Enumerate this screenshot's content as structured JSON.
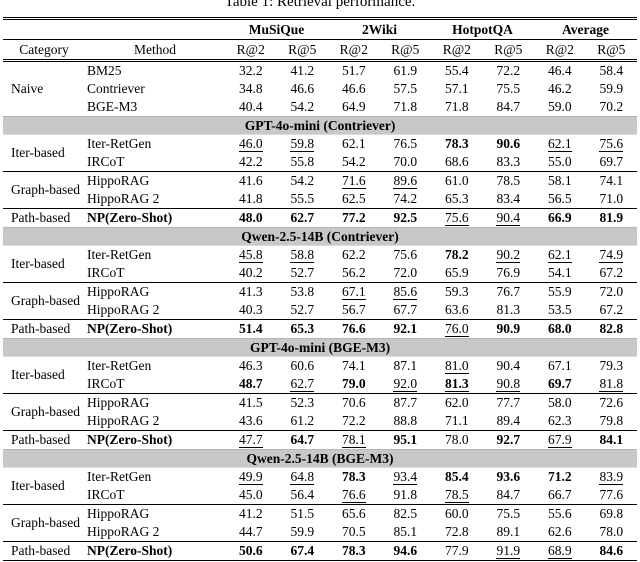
{
  "title": "Table 1: Retrieval performance.",
  "colors": {
    "band_bg": "#c8c8c8",
    "text": "#000000",
    "background": "#ffffff"
  },
  "table": {
    "group_headers": [
      "MuSiQue",
      "2Wiki",
      "HotpotQA",
      "Average"
    ],
    "col_headers": [
      "Category",
      "Method",
      "R@2",
      "R@5",
      "R@2",
      "R@5",
      "R@2",
      "R@5",
      "R@2",
      "R@5"
    ],
    "style_legend": {
      "b": "bold (best)",
      "u": "underlined (second best)",
      "": "plain"
    },
    "rows": [
      {
        "category": "Naive",
        "catspan": 3,
        "method": "BM25",
        "cells": [
          [
            "32.2",
            ""
          ],
          [
            "41.2",
            ""
          ],
          [
            "51.7",
            ""
          ],
          [
            "61.9",
            ""
          ],
          [
            "55.4",
            ""
          ],
          [
            "72.2",
            ""
          ],
          [
            "46.4",
            ""
          ],
          [
            "58.4",
            ""
          ]
        ]
      },
      {
        "method": "Contriever",
        "cells": [
          [
            "34.8",
            ""
          ],
          [
            "46.6",
            ""
          ],
          [
            "46.6",
            ""
          ],
          [
            "57.5",
            ""
          ],
          [
            "57.1",
            ""
          ],
          [
            "75.5",
            ""
          ],
          [
            "46.2",
            ""
          ],
          [
            "59.9",
            ""
          ]
        ]
      },
      {
        "method": "BGE-M3",
        "cells": [
          [
            "40.4",
            ""
          ],
          [
            "54.2",
            ""
          ],
          [
            "64.9",
            ""
          ],
          [
            "71.8",
            ""
          ],
          [
            "71.8",
            ""
          ],
          [
            "84.7",
            ""
          ],
          [
            "59.0",
            ""
          ],
          [
            "70.2",
            ""
          ]
        ]
      },
      {
        "band": "GPT-4o-mini (Contriever)"
      },
      {
        "category": "Iter-based",
        "catspan": 2,
        "method": "Iter-RetGen",
        "cells": [
          [
            "46.0",
            "u"
          ],
          [
            "59.8",
            "u"
          ],
          [
            "62.1",
            ""
          ],
          [
            "76.5",
            ""
          ],
          [
            "78.3",
            "b"
          ],
          [
            "90.6",
            "b"
          ],
          [
            "62.1",
            "u"
          ],
          [
            "75.6",
            "u"
          ]
        ]
      },
      {
        "method": "IRCoT",
        "cells": [
          [
            "42.2",
            ""
          ],
          [
            "55.8",
            ""
          ],
          [
            "54.2",
            ""
          ],
          [
            "70.0",
            ""
          ],
          [
            "68.6",
            ""
          ],
          [
            "83.3",
            ""
          ],
          [
            "55.0",
            ""
          ],
          [
            "69.7",
            ""
          ]
        ]
      },
      {
        "sep": true,
        "category": "Graph-based",
        "catspan": 2,
        "method": "HippoRAG",
        "cells": [
          [
            "41.6",
            ""
          ],
          [
            "54.2",
            ""
          ],
          [
            "71.6",
            "u"
          ],
          [
            "89.6",
            "u"
          ],
          [
            "61.0",
            ""
          ],
          [
            "78.5",
            ""
          ],
          [
            "58.1",
            ""
          ],
          [
            "74.1",
            ""
          ]
        ]
      },
      {
        "method": "HippoRAG 2",
        "cells": [
          [
            "41.8",
            ""
          ],
          [
            "55.5",
            ""
          ],
          [
            "62.5",
            ""
          ],
          [
            "74.2",
            ""
          ],
          [
            "65.3",
            ""
          ],
          [
            "83.4",
            ""
          ],
          [
            "56.5",
            ""
          ],
          [
            "71.0",
            ""
          ]
        ]
      },
      {
        "sep": true,
        "category": "Path-based",
        "catspan": 1,
        "method": "NP(Zero-Shot)",
        "method_bold": true,
        "cells": [
          [
            "48.0",
            "b"
          ],
          [
            "62.7",
            "b"
          ],
          [
            "77.2",
            "b"
          ],
          [
            "92.5",
            "b"
          ],
          [
            "75.6",
            "u"
          ],
          [
            "90.4",
            "u"
          ],
          [
            "66.9",
            "b"
          ],
          [
            "81.9",
            "b"
          ]
        ]
      },
      {
        "band": "Qwen-2.5-14B (Contriever)"
      },
      {
        "category": "Iter-based",
        "catspan": 2,
        "method": "Iter-RetGen",
        "cells": [
          [
            "45.8",
            "u"
          ],
          [
            "58.8",
            "u"
          ],
          [
            "62.2",
            ""
          ],
          [
            "75.6",
            ""
          ],
          [
            "78.2",
            "b"
          ],
          [
            "90.2",
            "u"
          ],
          [
            "62.1",
            "u"
          ],
          [
            "74.9",
            "u"
          ]
        ]
      },
      {
        "method": "IRCoT",
        "cells": [
          [
            "40.2",
            ""
          ],
          [
            "52.7",
            ""
          ],
          [
            "56.2",
            ""
          ],
          [
            "72.0",
            ""
          ],
          [
            "65.9",
            ""
          ],
          [
            "76.9",
            ""
          ],
          [
            "54.1",
            ""
          ],
          [
            "67.2",
            ""
          ]
        ]
      },
      {
        "sep": true,
        "category": "Graph-based",
        "catspan": 2,
        "method": "HippoRAG",
        "cells": [
          [
            "41.3",
            ""
          ],
          [
            "53.8",
            ""
          ],
          [
            "67.1",
            "u"
          ],
          [
            "85.6",
            "u"
          ],
          [
            "59.3",
            ""
          ],
          [
            "76.7",
            ""
          ],
          [
            "55.9",
            ""
          ],
          [
            "72.0",
            ""
          ]
        ]
      },
      {
        "method": "HippoRAG 2",
        "cells": [
          [
            "40.3",
            ""
          ],
          [
            "52.7",
            ""
          ],
          [
            "56.7",
            ""
          ],
          [
            "67.7",
            ""
          ],
          [
            "63.6",
            ""
          ],
          [
            "81.3",
            ""
          ],
          [
            "53.5",
            ""
          ],
          [
            "67.2",
            ""
          ]
        ]
      },
      {
        "sep": true,
        "category": "Path-based",
        "catspan": 1,
        "method": "NP(Zero-Shot)",
        "method_bold": true,
        "cells": [
          [
            "51.4",
            "b"
          ],
          [
            "65.3",
            "b"
          ],
          [
            "76.6",
            "b"
          ],
          [
            "92.1",
            "b"
          ],
          [
            "76.0",
            "u"
          ],
          [
            "90.9",
            "b"
          ],
          [
            "68.0",
            "b"
          ],
          [
            "82.8",
            "b"
          ]
        ]
      },
      {
        "band": "GPT-4o-mini (BGE-M3)"
      },
      {
        "category": "Iter-based",
        "catspan": 2,
        "method": "Iter-RetGen",
        "cells": [
          [
            "46.3",
            ""
          ],
          [
            "60.6",
            ""
          ],
          [
            "74.1",
            ""
          ],
          [
            "87.1",
            ""
          ],
          [
            "81.0",
            "u"
          ],
          [
            "90.4",
            ""
          ],
          [
            "67.1",
            ""
          ],
          [
            "79.3",
            ""
          ]
        ]
      },
      {
        "method": "IRCoT",
        "cells": [
          [
            "48.7",
            "b"
          ],
          [
            "62.7",
            "u"
          ],
          [
            "79.0",
            "b"
          ],
          [
            "92.0",
            "u"
          ],
          [
            "81.3",
            "bu"
          ],
          [
            "90.8",
            "u"
          ],
          [
            "69.7",
            "b"
          ],
          [
            "81.8",
            "u"
          ]
        ]
      },
      {
        "sep": true,
        "category": "Graph-based",
        "catspan": 2,
        "method": "HippoRAG",
        "cells": [
          [
            "41.5",
            ""
          ],
          [
            "52.3",
            ""
          ],
          [
            "70.6",
            ""
          ],
          [
            "87.7",
            ""
          ],
          [
            "62.0",
            ""
          ],
          [
            "77.7",
            ""
          ],
          [
            "58.0",
            ""
          ],
          [
            "72.6",
            ""
          ]
        ]
      },
      {
        "method": "HippoRAG 2",
        "cells": [
          [
            "43.6",
            ""
          ],
          [
            "61.2",
            ""
          ],
          [
            "72.2",
            ""
          ],
          [
            "88.8",
            ""
          ],
          [
            "71.1",
            ""
          ],
          [
            "89.4",
            ""
          ],
          [
            "62.3",
            ""
          ],
          [
            "79.8",
            ""
          ]
        ]
      },
      {
        "sep": true,
        "category": "Path-based",
        "catspan": 1,
        "method": "NP(Zero-Shot)",
        "method_bold": true,
        "cells": [
          [
            "47.7",
            "u"
          ],
          [
            "64.7",
            "b"
          ],
          [
            "78.1",
            "u"
          ],
          [
            "95.1",
            "b"
          ],
          [
            "78.0",
            ""
          ],
          [
            "92.7",
            "b"
          ],
          [
            "67.9",
            "u"
          ],
          [
            "84.1",
            "b"
          ]
        ]
      },
      {
        "band": "Qwen-2.5-14B (BGE-M3)"
      },
      {
        "category": "Iter-based",
        "catspan": 2,
        "method": "Iter-RetGen",
        "cells": [
          [
            "49.9",
            "u"
          ],
          [
            "64.8",
            "u"
          ],
          [
            "78.3",
            "b"
          ],
          [
            "93.4",
            "u"
          ],
          [
            "85.4",
            "b"
          ],
          [
            "93.6",
            "b"
          ],
          [
            "71.2",
            "b"
          ],
          [
            "83.9",
            "u"
          ]
        ]
      },
      {
        "method": "IRCoT",
        "cells": [
          [
            "45.0",
            ""
          ],
          [
            "56.4",
            ""
          ],
          [
            "76.6",
            "u"
          ],
          [
            "91.8",
            ""
          ],
          [
            "78.5",
            "u"
          ],
          [
            "84.7",
            ""
          ],
          [
            "66.7",
            ""
          ],
          [
            "77.6",
            ""
          ]
        ]
      },
      {
        "sep": true,
        "category": "Graph-based",
        "catspan": 2,
        "method": "HippoRAG",
        "cells": [
          [
            "41.2",
            ""
          ],
          [
            "51.5",
            ""
          ],
          [
            "65.6",
            ""
          ],
          [
            "82.5",
            ""
          ],
          [
            "60.0",
            ""
          ],
          [
            "75.5",
            ""
          ],
          [
            "55.6",
            ""
          ],
          [
            "69.8",
            ""
          ]
        ]
      },
      {
        "method": "HippoRAG 2",
        "cells": [
          [
            "44.7",
            ""
          ],
          [
            "59.9",
            ""
          ],
          [
            "70.5",
            ""
          ],
          [
            "85.1",
            ""
          ],
          [
            "72.8",
            ""
          ],
          [
            "89.1",
            ""
          ],
          [
            "62.6",
            ""
          ],
          [
            "78.0",
            ""
          ]
        ]
      },
      {
        "sep": true,
        "category": "Path-based",
        "catspan": 1,
        "method": "NP(Zero-Shot)",
        "method_bold": true,
        "cells": [
          [
            "50.6",
            "b"
          ],
          [
            "67.4",
            "b"
          ],
          [
            "78.3",
            "b"
          ],
          [
            "94.6",
            "b"
          ],
          [
            "77.9",
            ""
          ],
          [
            "91.9",
            "u"
          ],
          [
            "68.9",
            "u"
          ],
          [
            "84.6",
            "b"
          ]
        ]
      }
    ]
  }
}
